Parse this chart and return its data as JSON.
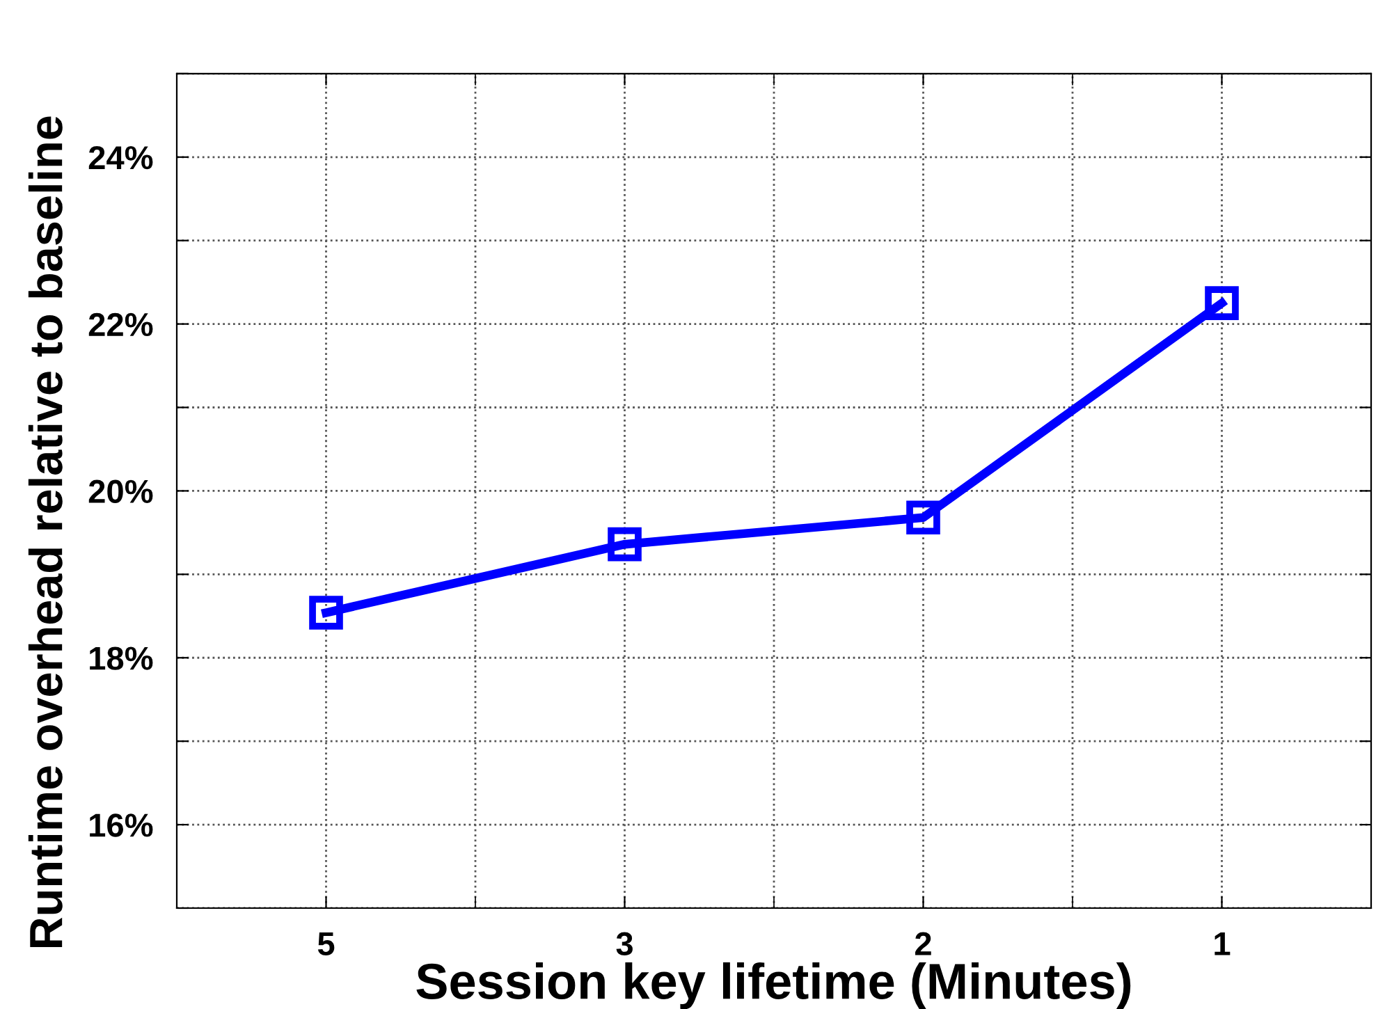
{
  "chart_data": {
    "type": "line",
    "xlabel": "Session key lifetime (Minutes)",
    "ylabel": "Runtime overhead relative to baseline",
    "categories": [
      "5",
      "3",
      "2",
      "1"
    ],
    "ylim": [
      15,
      25
    ],
    "yticks": [
      {
        "value": 15,
        "label": null
      },
      {
        "value": 16,
        "label": "16%"
      },
      {
        "value": 17,
        "label": null
      },
      {
        "value": 18,
        "label": "18%"
      },
      {
        "value": 19,
        "label": null
      },
      {
        "value": 20,
        "label": "20%"
      },
      {
        "value": 21,
        "label": null
      },
      {
        "value": 22,
        "label": "22%"
      },
      {
        "value": 23,
        "label": null
      },
      {
        "value": 24,
        "label": "24%"
      },
      {
        "value": 25,
        "label": null
      }
    ],
    "series": [
      {
        "color": "#0000ff",
        "values": [
          18.54,
          19.36,
          19.68,
          22.25
        ]
      }
    ],
    "marker": "square",
    "line_style": "solid",
    "grid": true,
    "legend": false
  }
}
